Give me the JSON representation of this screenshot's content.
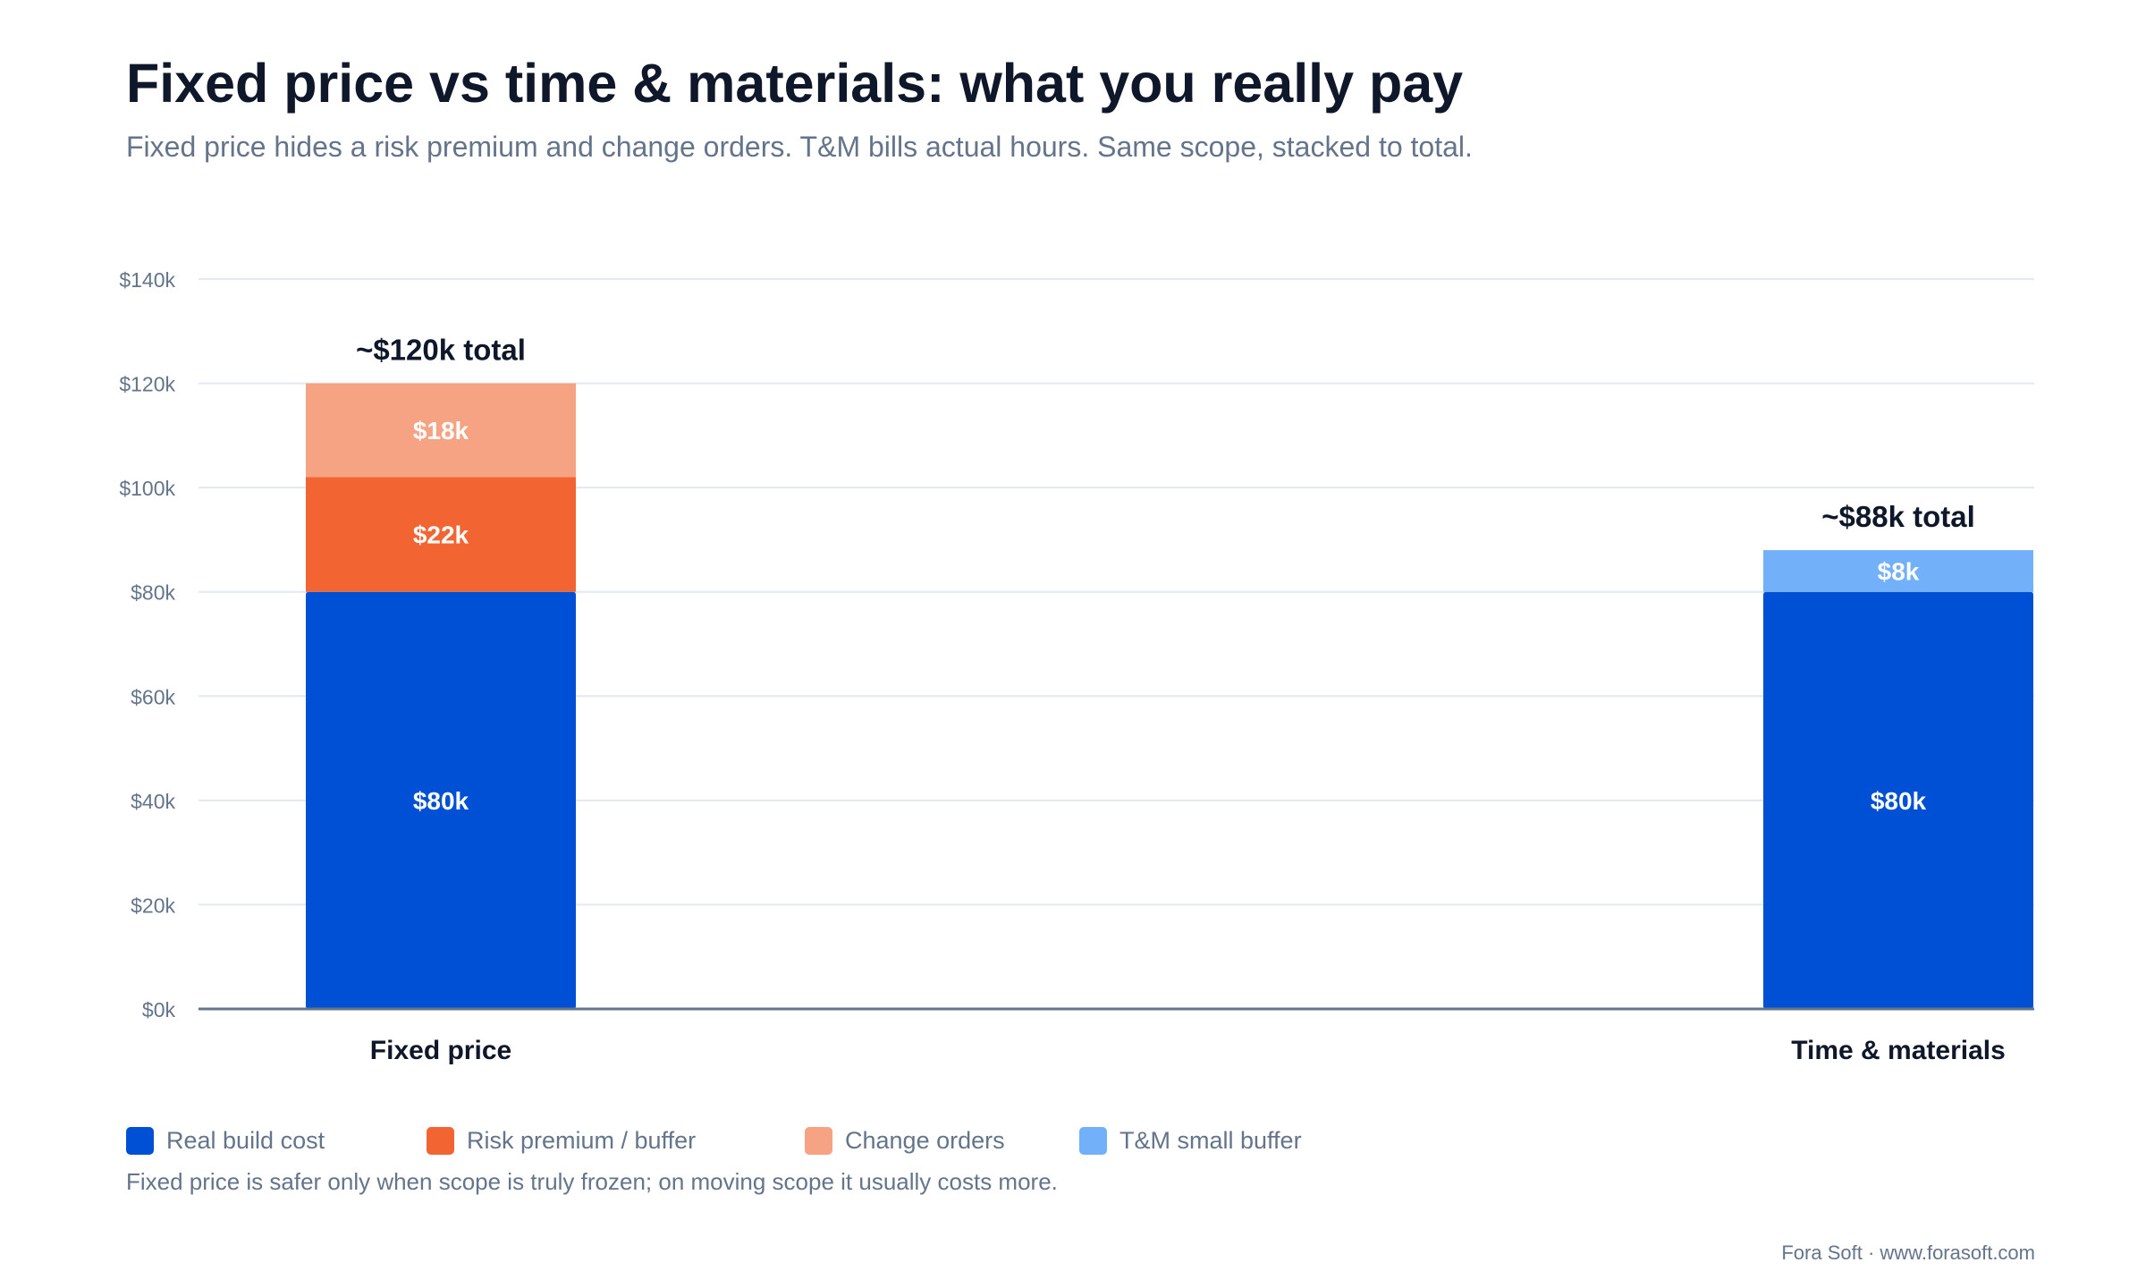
{
  "title": "Fixed price vs time & materials: what you really pay",
  "subtitle": "Fixed price hides a risk premium and change orders. T&M bills actual hours. Same scope, stacked to total.",
  "note": "Fixed price is safer only when scope is truly frozen; on moving scope it usually costs more.",
  "footer": "Fora Soft · www.forasoft.com",
  "chart_data": {
    "type": "bar",
    "stacked": true,
    "categories": [
      "Fixed price",
      "Time & materials"
    ],
    "ylim": [
      0,
      140
    ],
    "y_ticks": [
      0,
      20,
      40,
      60,
      80,
      100,
      120,
      140
    ],
    "y_tick_labels": [
      "$0k",
      "$20k",
      "$40k",
      "$60k",
      "$80k",
      "$100k",
      "$120k",
      "$140k"
    ],
    "grid": true,
    "legend_position": "bottom-left",
    "series": [
      {
        "name": "Real build cost",
        "color": "#0050d6",
        "values": [
          80,
          80
        ],
        "labels": [
          "$80k",
          "$80k"
        ]
      },
      {
        "name": "Risk premium / buffer",
        "color": "#f26532",
        "values": [
          22,
          0
        ],
        "labels": [
          "$22k",
          ""
        ]
      },
      {
        "name": "Change orders",
        "color": "#f5a383",
        "values": [
          18,
          0
        ],
        "labels": [
          "$18k",
          ""
        ]
      },
      {
        "name": "T&M small buffer",
        "color": "#72b0fa",
        "values": [
          0,
          8
        ],
        "labels": [
          "",
          "$8k"
        ]
      }
    ],
    "totals": [
      120,
      88
    ],
    "total_labels": [
      "~$120k total",
      "~$88k total"
    ]
  }
}
